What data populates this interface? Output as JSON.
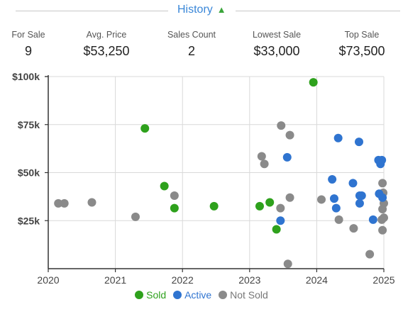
{
  "header": {
    "title": "History",
    "arrow": "▲"
  },
  "stats": [
    {
      "label": "For Sale",
      "value": "9"
    },
    {
      "label": "Avg. Price",
      "value": "$53,250"
    },
    {
      "label": "Sales Count",
      "value": "2"
    },
    {
      "label": "Lowest Sale",
      "value": "$33,000"
    },
    {
      "label": "Top Sale",
      "value": "$73,500"
    }
  ],
  "colors": {
    "sold": "#2ea11c",
    "active": "#2f74d0",
    "not_sold": "#8a8a8a"
  },
  "chart_data": {
    "type": "scatter",
    "xlim": [
      2020,
      2025
    ],
    "ylim": [
      0,
      100000
    ],
    "x_ticks": [
      2020,
      2021,
      2022,
      2023,
      2024,
      2025
    ],
    "x_tick_labels": [
      "2020",
      "2021",
      "2022",
      "2023",
      "2024",
      "2025"
    ],
    "y_ticks": [
      25000,
      50000,
      75000,
      100000
    ],
    "y_tick_labels": [
      "$25k",
      "$50k",
      "$75k",
      "$100k"
    ],
    "grid": true,
    "legend": "bottom",
    "series": [
      {
        "name": "Sold",
        "color": "#2ea11c",
        "points": [
          [
            2021.44,
            73000
          ],
          [
            2021.73,
            43000
          ],
          [
            2021.88,
            31500
          ],
          [
            2022.47,
            32500
          ],
          [
            2023.15,
            32500
          ],
          [
            2023.3,
            34500
          ],
          [
            2023.4,
            20500
          ],
          [
            2023.95,
            97000
          ]
        ]
      },
      {
        "name": "Active",
        "color": "#2f74d0",
        "points": [
          [
            2023.46,
            25000
          ],
          [
            2023.56,
            58000
          ],
          [
            2024.26,
            36500
          ],
          [
            2024.29,
            31500
          ],
          [
            2024.23,
            46500
          ],
          [
            2024.32,
            68000
          ],
          [
            2024.54,
            44500
          ],
          [
            2024.63,
            66000
          ],
          [
            2024.64,
            38000
          ],
          [
            2024.67,
            38000
          ],
          [
            2024.64,
            34000
          ],
          [
            2024.84,
            25500
          ],
          [
            2024.92,
            56500
          ],
          [
            2024.97,
            56500
          ],
          [
            2024.95,
            54500
          ],
          [
            2024.93,
            39000
          ],
          [
            2024.98,
            37000
          ]
        ]
      },
      {
        "name": "Not Sold",
        "color": "#8a8a8a",
        "points": [
          [
            2020.15,
            34000
          ],
          [
            2020.24,
            34000
          ],
          [
            2020.65,
            34500
          ],
          [
            2021.3,
            27000
          ],
          [
            2021.88,
            38000
          ],
          [
            2023.18,
            58500
          ],
          [
            2023.22,
            54500
          ],
          [
            2023.46,
            31500
          ],
          [
            2023.47,
            74500
          ],
          [
            2023.6,
            69500
          ],
          [
            2023.6,
            37000
          ],
          [
            2023.57,
            2500
          ],
          [
            2024.07,
            36000
          ],
          [
            2024.33,
            25500
          ],
          [
            2024.55,
            21000
          ],
          [
            2024.79,
            7500
          ],
          [
            2024.98,
            44500
          ],
          [
            2024.99,
            39500
          ],
          [
            2025.0,
            34000
          ],
          [
            2024.98,
            31000
          ],
          [
            2025.0,
            26500
          ],
          [
            2024.97,
            25500
          ],
          [
            2024.98,
            20000
          ]
        ]
      }
    ]
  }
}
